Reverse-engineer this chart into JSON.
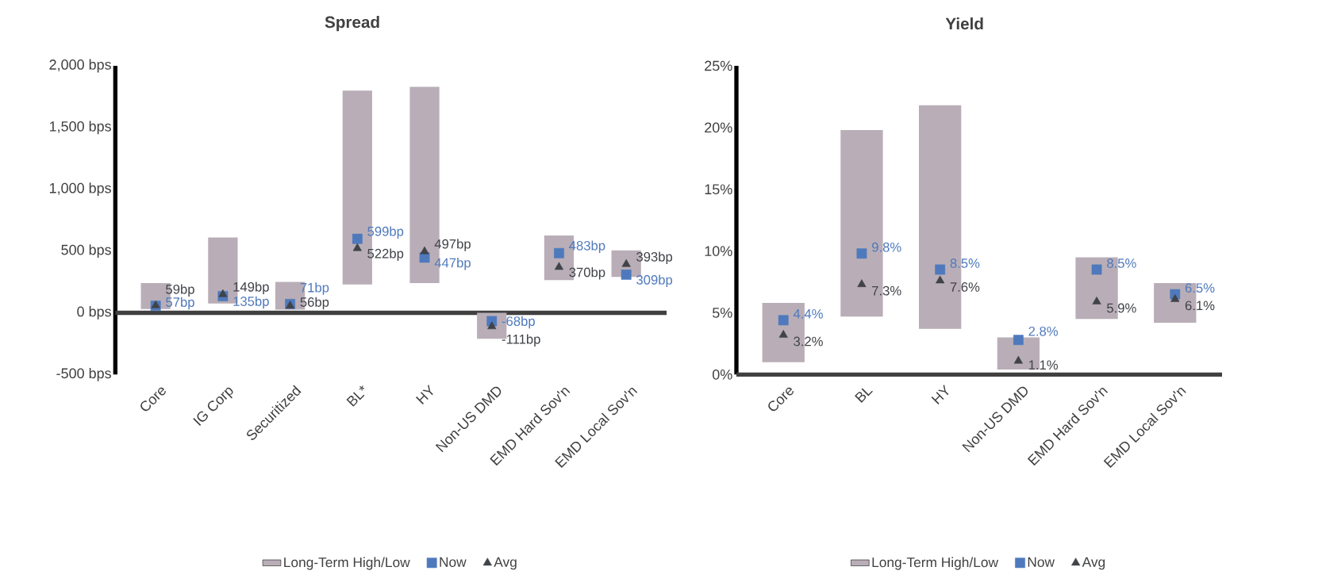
{
  "chart_data": [
    {
      "type": "bar",
      "title": "Spread",
      "categories": [
        "Core",
        "IG Corp",
        "Securitized",
        "BL*",
        "HY",
        "Non-US DMD",
        "EMD Hard Sov'n",
        "EMD Local Sov'n"
      ],
      "series": [
        {
          "name": "Long-Term High/Low",
          "type": "bar",
          "color": "#b9aeb7",
          "base": [
            30,
            75,
            25,
            230,
            240,
            -210,
            265,
            290
          ],
          "values": [
            210,
            535,
            225,
            1570,
            1590,
            210,
            360,
            215
          ]
        },
        {
          "name": "Now",
          "type": "scatter",
          "marker": "square",
          "color": "#4f79bd",
          "values": [
            57,
            135,
            71,
            599,
            447,
            -68,
            483,
            309
          ],
          "value_labels": [
            "57bp",
            "135bp",
            "71bp",
            "599bp",
            "447bp",
            "-68bp",
            "483bp",
            "309bp"
          ]
        },
        {
          "name": "Avg",
          "type": "scatter",
          "marker": "triangle",
          "color": "#404348",
          "values": [
            59,
            149,
            56,
            522,
            497,
            -111,
            370,
            393
          ],
          "value_labels": [
            "59bp",
            "149bp",
            "56bp",
            "522bp",
            "497bp",
            "-111bp",
            "370bp",
            "393bp"
          ]
        }
      ],
      "ylim": [
        -500,
        2000
      ],
      "yticks": [
        {
          "value": -500,
          "label": "-500 bps"
        },
        {
          "value": 0,
          "label": "0 bps"
        },
        {
          "value": 500,
          "label": "500 bps"
        },
        {
          "value": 1000,
          "label": "1,000 bps"
        },
        {
          "value": 1500,
          "label": "1,500 bps"
        },
        {
          "value": 2000,
          "label": "2,000 bps"
        }
      ],
      "legend": "bottom"
    },
    {
      "type": "bar",
      "title": "Yield",
      "categories": [
        "Core",
        "BL",
        "HY",
        "Non-US DMD",
        "EMD Hard Sov'n",
        "EMD Local Sov'n"
      ],
      "series": [
        {
          "name": "Long-Term High/Low",
          "type": "bar",
          "color": "#b9aeb7",
          "base": [
            1.0,
            4.7,
            3.7,
            0.4,
            4.5,
            4.2
          ],
          "values": [
            4.8,
            15.1,
            18.1,
            2.6,
            5.0,
            3.2
          ]
        },
        {
          "name": "Now",
          "type": "scatter",
          "marker": "square",
          "color": "#4f79bd",
          "values": [
            4.4,
            9.8,
            8.5,
            2.8,
            8.5,
            6.5
          ],
          "value_labels": [
            "4.4%",
            "9.8%",
            "8.5%",
            "2.8%",
            "8.5%",
            "6.5%"
          ]
        },
        {
          "name": "Avg",
          "type": "scatter",
          "marker": "triangle",
          "color": "#404348",
          "values": [
            3.2,
            7.3,
            7.6,
            1.1,
            5.9,
            6.1
          ],
          "value_labels": [
            "3.2%",
            "7.3%",
            "7.6%",
            "1.1%",
            "5.9%",
            "6.1%"
          ]
        }
      ],
      "ylim": [
        0,
        25
      ],
      "yticks": [
        {
          "value": 0,
          "label": "0%"
        },
        {
          "value": 5,
          "label": "5%"
        },
        {
          "value": 10,
          "label": "10%"
        },
        {
          "value": 15,
          "label": "15%"
        },
        {
          "value": 20,
          "label": "20%"
        },
        {
          "value": 25,
          "label": "25%"
        }
      ],
      "legend": "bottom"
    }
  ]
}
